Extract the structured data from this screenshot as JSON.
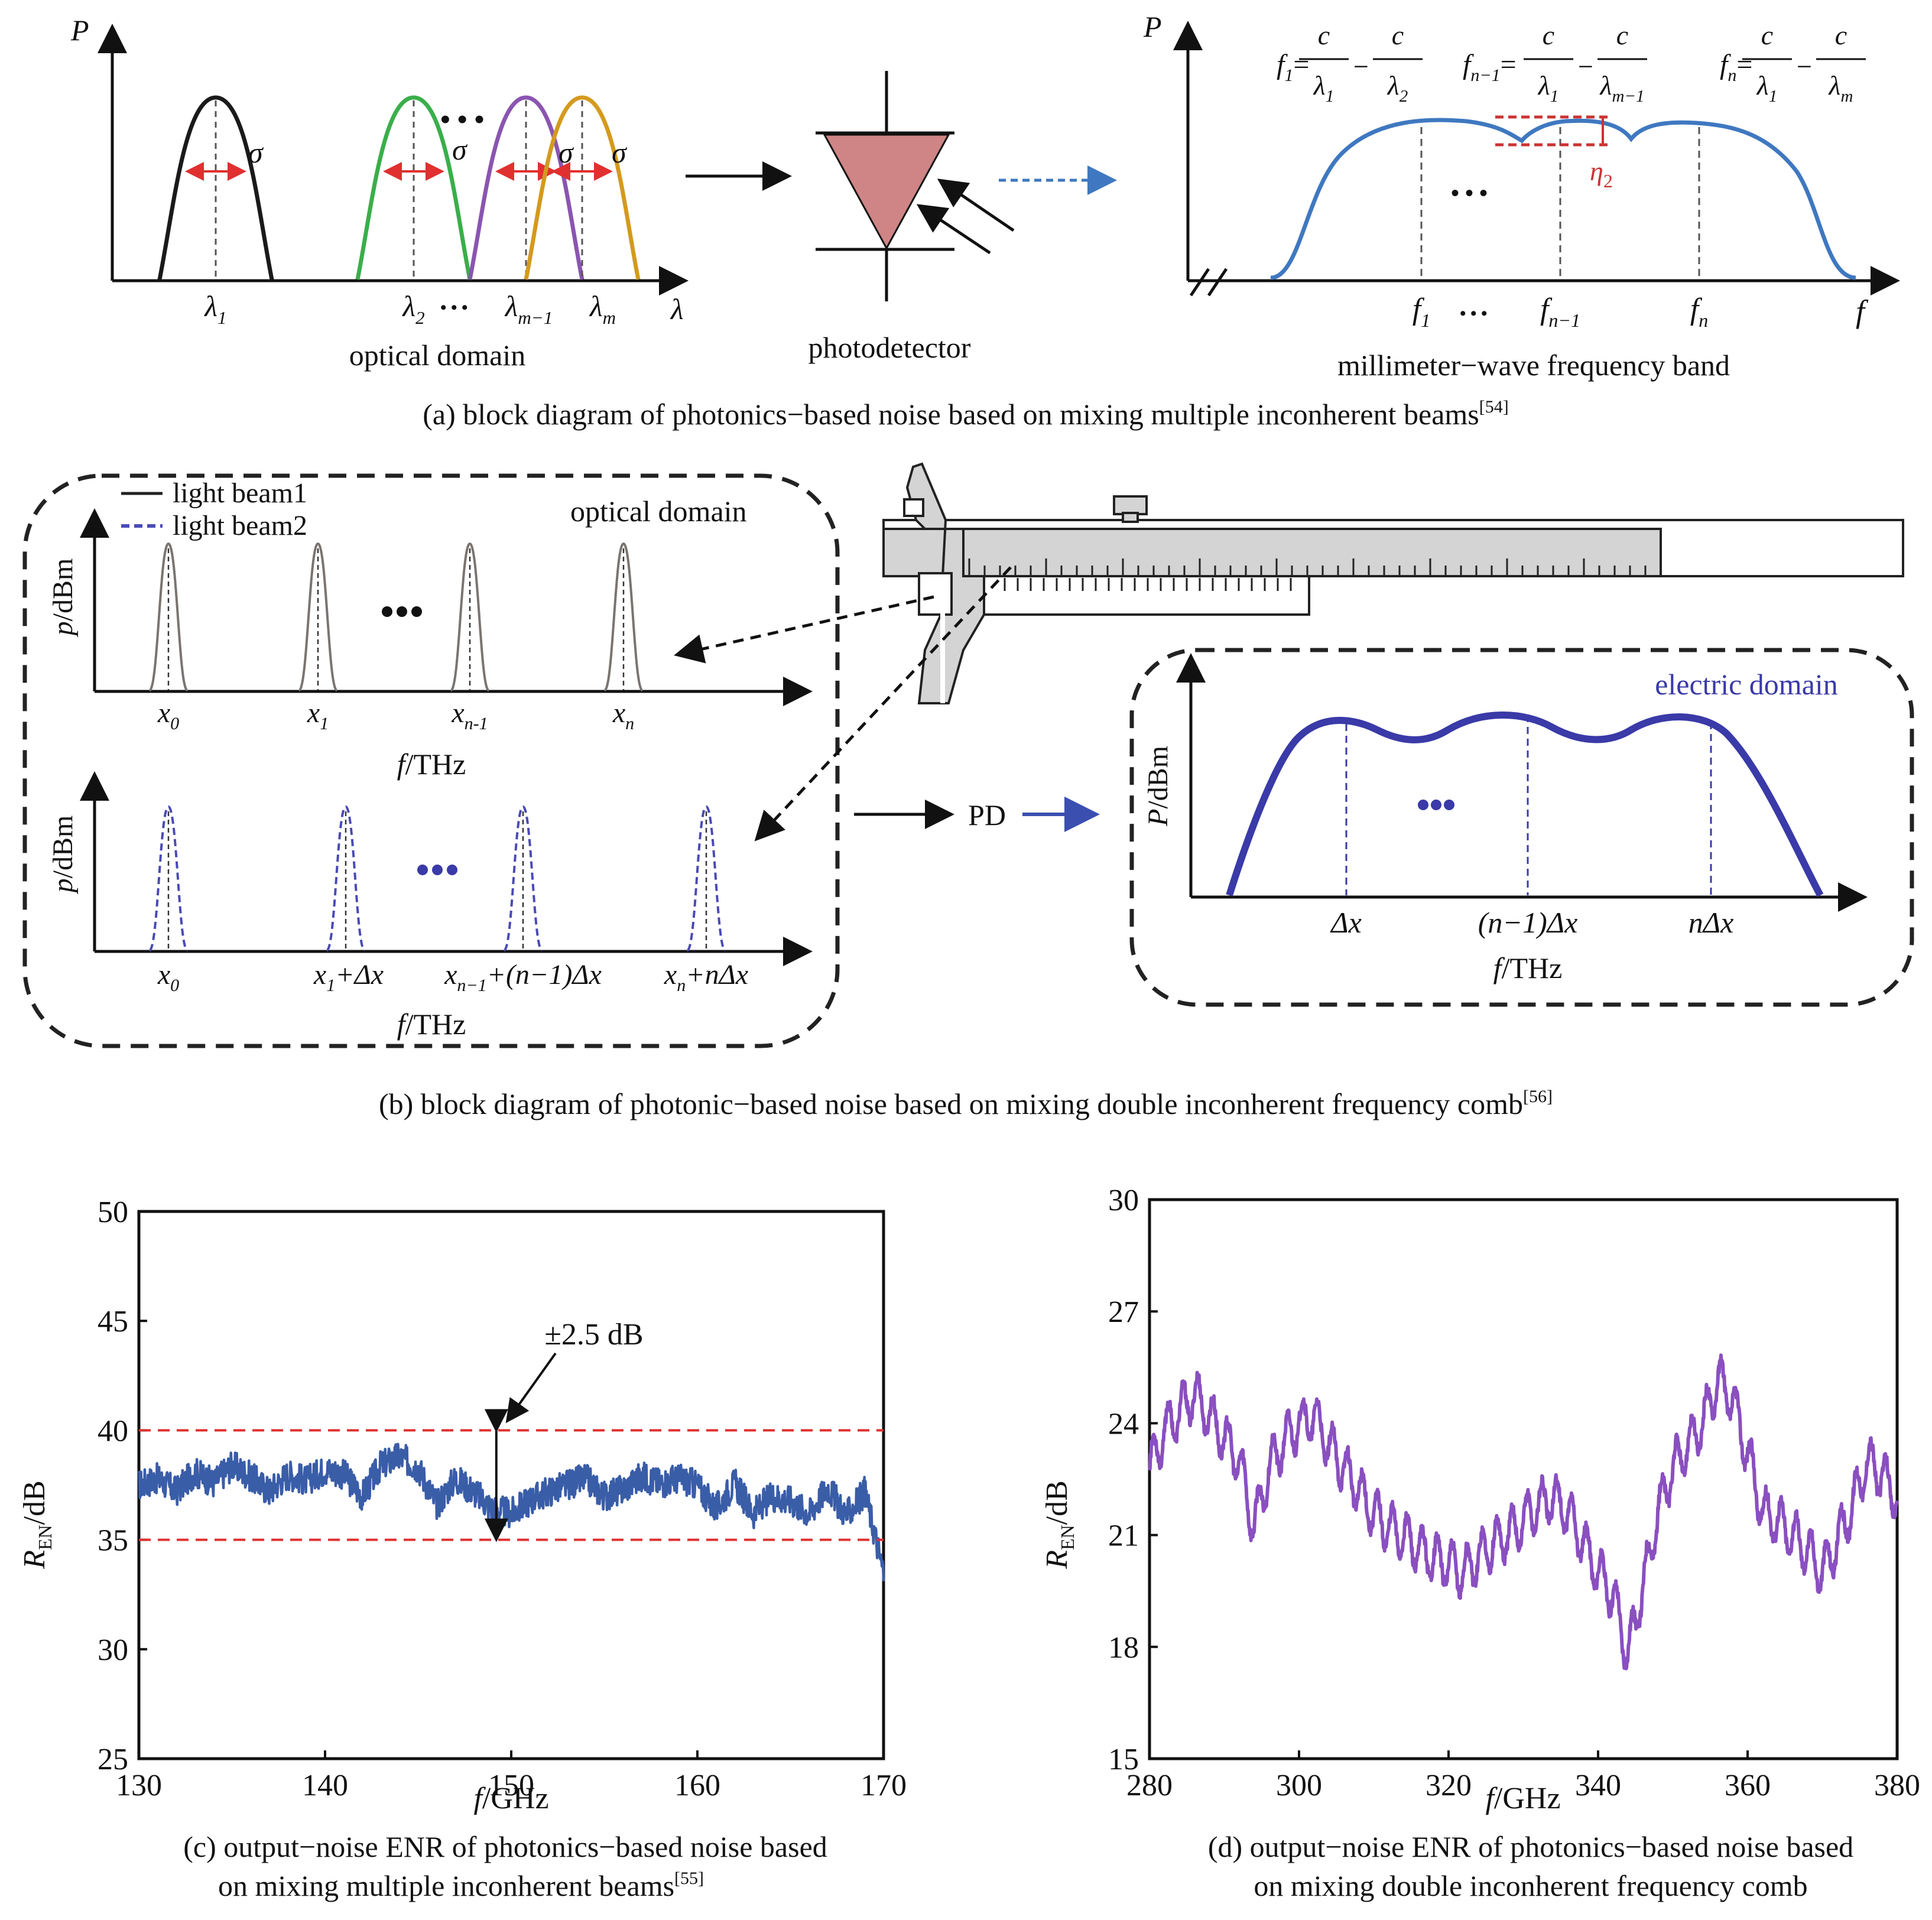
{
  "panel_a": {
    "caption_text": "(a) block diagram of photonics−based noise based on mixing multiple inconherent beams",
    "caption_ref": "[54]",
    "p_axis": "P",
    "lambda_axis": "λ",
    "f_axis": "f",
    "sigma": "σ",
    "dots": "• • •",
    "optical_label": "optical domain",
    "photodetector_label": "photodetector",
    "mmwave_label": "millimeter−wave frequency band",
    "eta": "η",
    "eta_sub": "2",
    "lambda_ticks": [
      {
        "base": "λ",
        "sub": "1"
      },
      {
        "base": "λ",
        "sub": "2"
      },
      {
        "base": "λ",
        "sub": "m−1"
      },
      {
        "base": "λ",
        "sub": "m"
      }
    ],
    "f_ticks": [
      {
        "base": "f",
        "sub": "1"
      },
      {
        "base": "f",
        "sub": "n−1"
      },
      {
        "base": "f",
        "sub": "n"
      }
    ],
    "formulas": [
      {
        "lhs": "f",
        "lhs_sub": "1",
        "eq": "=",
        "num": "c",
        "den1": "λ",
        "den1_sub": "1",
        "minus": "−",
        "den2": "λ",
        "den2_sub": "2"
      },
      {
        "lhs": "f",
        "lhs_sub": "n−1",
        "eq": "=",
        "num": "c",
        "den1": "λ",
        "den1_sub": "1",
        "minus": "−",
        "den2": "λ",
        "den2_sub": "m−1"
      },
      {
        "lhs": "f",
        "lhs_sub": "n",
        "eq": "=",
        "num": "c",
        "den1": "λ",
        "den1_sub": "1",
        "minus": "−",
        "den2": "λ",
        "den2_sub": "m"
      }
    ],
    "colors": {
      "beam1": "#1a1a1a",
      "beam2": "#3aae4a",
      "beam3": "#8a55b0",
      "beam4": "#d49a1e",
      "sigma_arrow": "#e03030",
      "spectrum": "#3f78c0",
      "detector": "#cf8585"
    }
  },
  "panel_b": {
    "caption_text": "(b) block diagram of photonic−based noise based on mixing double inconherent frequency comb",
    "caption_ref": "[56]",
    "legend": [
      "light beam1",
      "light beam2"
    ],
    "optical_label": "optical domain",
    "electric_label": "electric domain",
    "ylabel_p": "p",
    "ylabel_P": "P",
    "ylabel_unit": "/dBm",
    "xlabel_f": "f",
    "xlabel_unit": "/THz",
    "pd_label": "PD",
    "top_ticks": [
      {
        "base": "x",
        "sub": "0",
        "rest": ""
      },
      {
        "base": "x",
        "sub": "1",
        "rest": ""
      },
      {
        "base": "x",
        "sub": "n-1",
        "rest": ""
      },
      {
        "base": "x",
        "sub": "n",
        "rest": ""
      }
    ],
    "bottom_ticks": [
      {
        "base": "x",
        "sub": "0",
        "rest": ""
      },
      {
        "base": "x",
        "sub": "1",
        "rest": "+Δx"
      },
      {
        "base": "x",
        "sub": "n−1",
        "rest": "+(n−1)Δx"
      },
      {
        "base": "x",
        "sub": "n",
        "rest": "+nΔx"
      }
    ],
    "electric_ticks": [
      "Δx",
      "(n−1)Δx",
      "nΔx"
    ],
    "colors": {
      "comb1": "#7a7470",
      "comb2": "#4a4ab5",
      "electric": "#3a3aa8",
      "caliper": "#d4d4d4"
    }
  },
  "panel_c": {
    "caption_line1": "(c) output−noise ENR of photonics−based noise based",
    "caption_line2": "on mixing multiple inconherent beams",
    "caption_ref": "[55]",
    "ylabel": "R",
    "ylabel_sub": "EN",
    "ylabel_unit": "/dB",
    "xlabel": "f",
    "xlabel_unit": "/GHz",
    "annotation": "±2.5 dB",
    "xlim": [
      130,
      170
    ],
    "ylim": [
      25,
      50
    ],
    "xticks": [
      "130",
      "140",
      "150",
      "160",
      "170"
    ],
    "yticks": [
      "25",
      "30",
      "35",
      "40",
      "45",
      "50"
    ],
    "ref_lines": [
      40,
      35
    ],
    "colors": {
      "trace": "#3a5da8",
      "ref": "#e03030"
    }
  },
  "panel_d": {
    "caption_line1": "(d) output−noise ENR of photonics−based noise based",
    "caption_line2": "on mixing double inconherent frequency comb",
    "ylabel": "R",
    "ylabel_sub": "EN",
    "ylabel_unit": "/dB",
    "xlabel": "f",
    "xlabel_unit": "/GHz",
    "xlim": [
      280,
      380
    ],
    "ylim": [
      15,
      30
    ],
    "xticks": [
      "280",
      "300",
      "320",
      "340",
      "360",
      "380"
    ],
    "yticks": [
      "15",
      "18",
      "21",
      "24",
      "27",
      "30"
    ],
    "colors": {
      "trace": "#8a4fc0"
    }
  },
  "chart_data": [
    {
      "type": "line",
      "xlabel": "f/GHz",
      "ylabel": "R_EN/dB",
      "xlim": [
        130,
        170
      ],
      "ylim": [
        25,
        50
      ],
      "grid": false,
      "series": [
        {
          "x": [
            130,
            131,
            132,
            133,
            134,
            135,
            136,
            137,
            138,
            139,
            140,
            141,
            142,
            143,
            144,
            145,
            146,
            147,
            148,
            149,
            150,
            151,
            152,
            153,
            154,
            155,
            156,
            157,
            158,
            159,
            160,
            161,
            162,
            163,
            164,
            165,
            166,
            167,
            168,
            169,
            170
          ],
          "values": [
            37.5,
            37.8,
            37.2,
            38.1,
            37.6,
            38.4,
            37.9,
            37.2,
            38.0,
            37.7,
            38.2,
            38.0,
            37.0,
            38.4,
            38.8,
            38.3,
            36.6,
            37.8,
            37.2,
            36.4,
            36.2,
            36.8,
            37.2,
            37.5,
            37.8,
            37.0,
            37.3,
            37.9,
            37.6,
            37.8,
            37.5,
            36.4,
            37.6,
            36.2,
            37.0,
            36.8,
            36.2,
            37.4,
            36.1,
            37.2,
            33.5
          ]
        }
      ]
    },
    {
      "type": "line",
      "xlabel": "f/GHz",
      "ylabel": "R_EN/dB",
      "xlim": [
        280,
        380
      ],
      "ylim": [
        15,
        30
      ],
      "grid": false,
      "series": [
        {
          "x": [
            280,
            282,
            284,
            286,
            288,
            290,
            292,
            294,
            296,
            298,
            300,
            302,
            304,
            306,
            308,
            310,
            312,
            314,
            316,
            318,
            320,
            322,
            324,
            326,
            328,
            330,
            332,
            334,
            336,
            338,
            340,
            342,
            344,
            346,
            348,
            350,
            352,
            354,
            356,
            358,
            360,
            362,
            364,
            366,
            368,
            370,
            372,
            374,
            376,
            378,
            380
          ],
          "values": [
            22.8,
            23.8,
            24.3,
            24.8,
            24.2,
            23.6,
            23.0,
            21.2,
            22.8,
            23.5,
            24.0,
            24.2,
            23.4,
            22.8,
            22.2,
            21.6,
            21.2,
            21.0,
            20.6,
            20.4,
            20.2,
            20.0,
            20.4,
            20.8,
            21.0,
            21.4,
            21.8,
            22.0,
            21.6,
            20.8,
            20.0,
            19.4,
            17.8,
            19.6,
            21.6,
            22.8,
            23.4,
            24.0,
            25.2,
            24.6,
            23.2,
            21.6,
            21.4,
            21.0,
            20.6,
            20.0,
            20.8,
            21.8,
            23.0,
            22.6,
            22.0
          ]
        }
      ]
    }
  ]
}
